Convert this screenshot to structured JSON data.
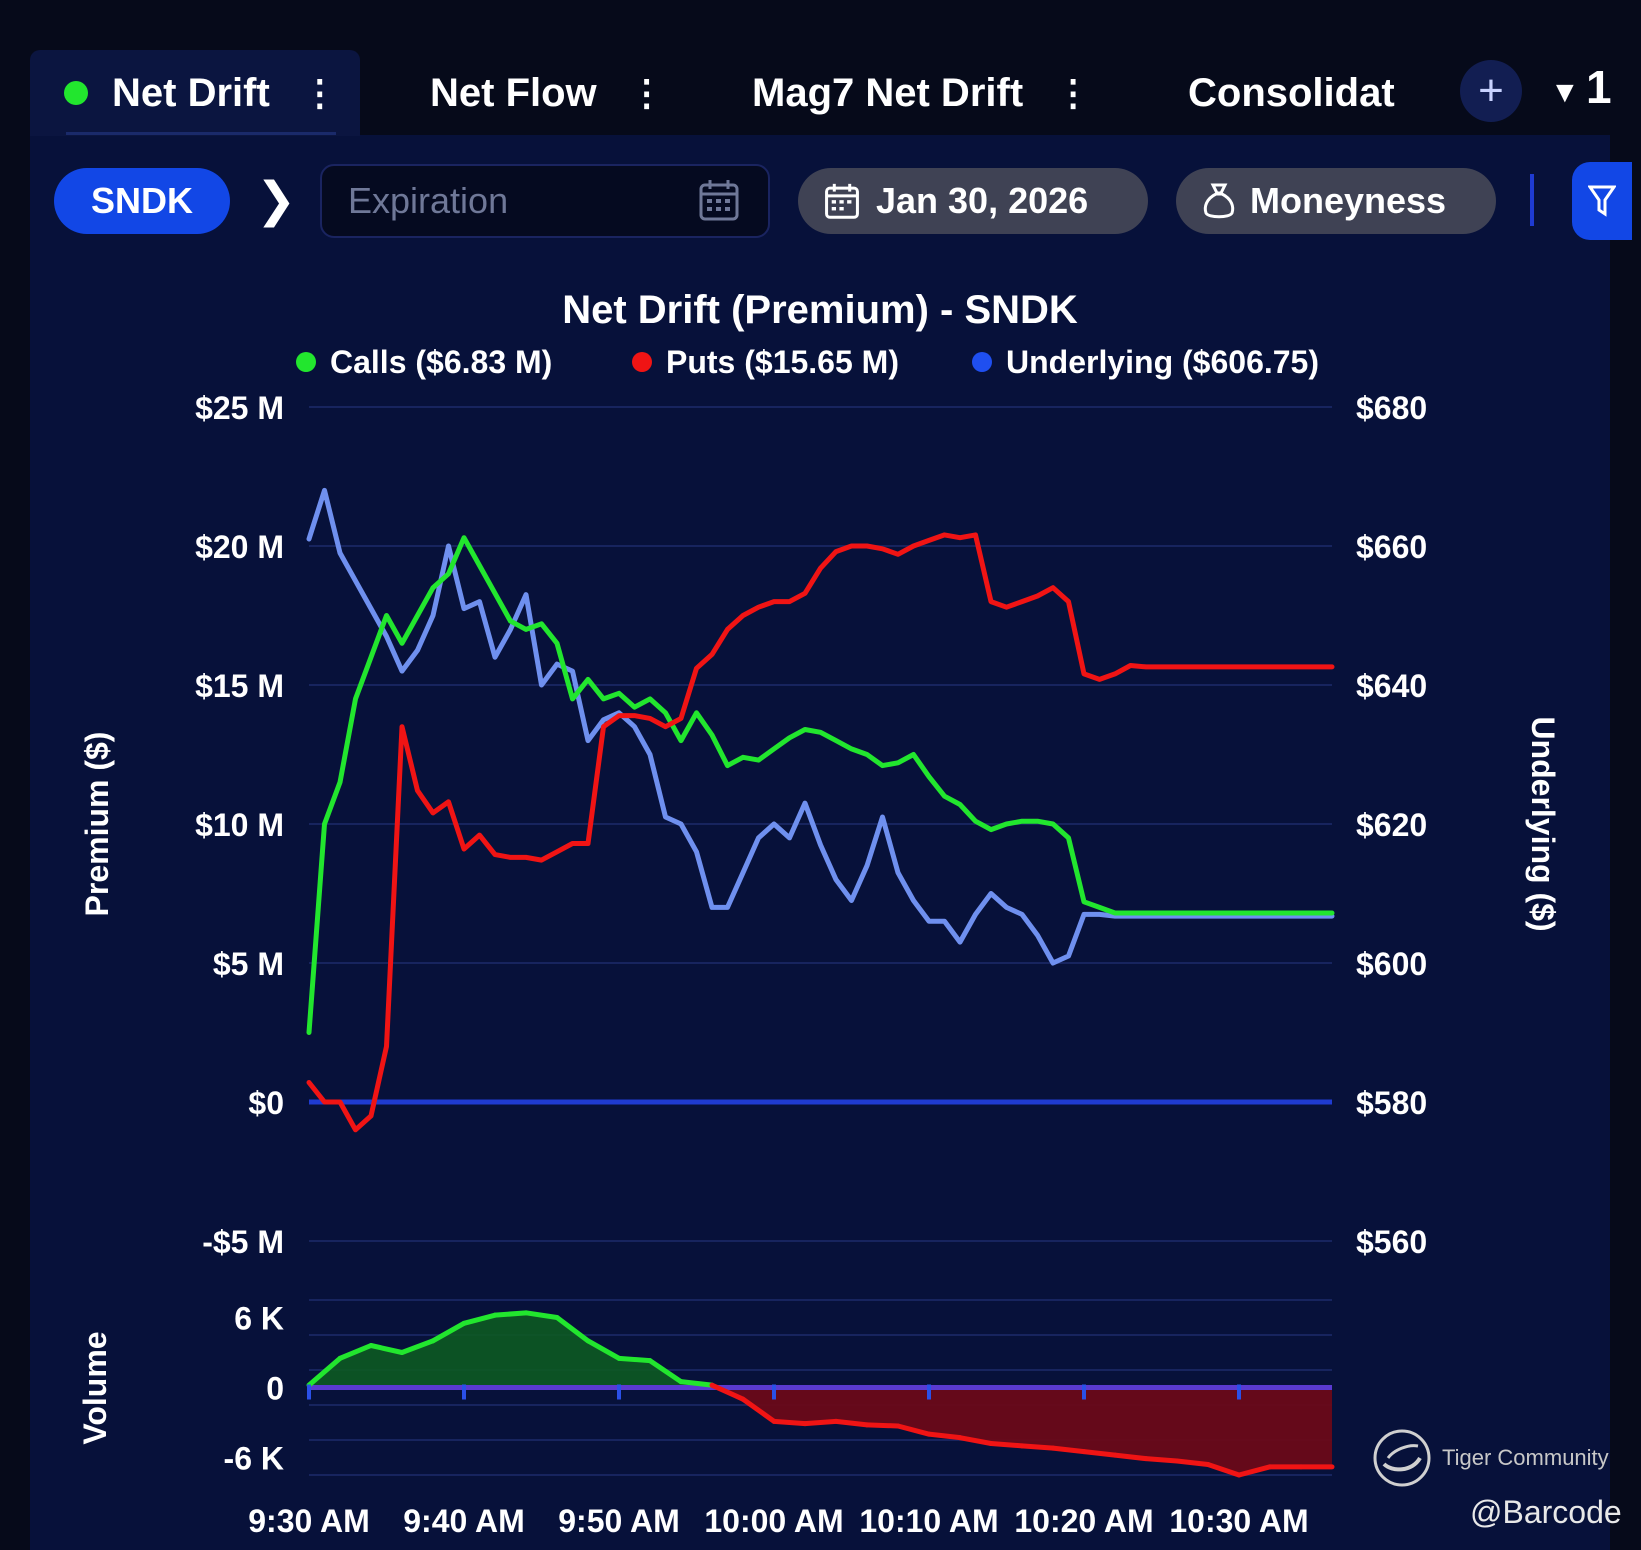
{
  "tabs": [
    {
      "label": "Net Drift",
      "active": true
    },
    {
      "label": "Net Flow",
      "active": false
    },
    {
      "label": "Mag7 Net Drift",
      "active": false
    },
    {
      "label": "Consolidat",
      "active": false
    }
  ],
  "tab_menu_glyph": "⋮",
  "add_tab_glyph": "+",
  "tab_count": "1",
  "toolbar": {
    "ticker": "SNDK",
    "expiration_placeholder": "Expiration",
    "date": "Jan 30, 2026",
    "moneyness": "Moneyness"
  },
  "colors": {
    "calls": "#22e62e",
    "puts": "#f01414",
    "underlying": "#6f90ef",
    "legend_underlying": "#1f4ff0",
    "zero_line": "#1f3bd1"
  },
  "chart_data": [
    {
      "type": "line",
      "title": "Net Drift (Premium) - SNDK",
      "legend": [
        "Calls ($6.83 M)",
        "Puts ($15.65 M)",
        "Underlying ($606.75)"
      ],
      "legend_placement": "top-center",
      "ylabel": "Premium ($)",
      "y2label": "Underlying ($)",
      "ylim": [
        -5,
        25
      ],
      "y2lim": [
        560,
        680
      ],
      "yticks": [
        25,
        20,
        15,
        10,
        5,
        0,
        -5
      ],
      "ytick_labels": [
        "$25 M",
        "$20 M",
        "$15 M",
        "$10 M",
        "$5 M",
        "$0",
        "-$5 M"
      ],
      "y2ticks": [
        680,
        660,
        640,
        620,
        600,
        580,
        560
      ],
      "y2tick_labels": [
        "$680",
        "$660",
        "$640",
        "$620",
        "$600",
        "$580",
        "$560"
      ],
      "x_minutes_from_930": [
        0,
        1,
        2,
        3,
        4,
        5,
        6,
        7,
        8,
        9,
        10,
        11,
        12,
        13,
        14,
        15,
        16,
        17,
        18,
        19,
        20,
        21,
        22,
        23,
        24,
        25,
        26,
        27,
        28,
        29,
        30,
        31,
        32,
        33,
        34,
        35,
        36,
        37,
        38,
        39,
        40,
        41,
        42,
        43,
        44,
        45,
        46,
        47,
        48,
        49,
        50,
        51,
        52,
        53,
        54,
        55,
        56,
        57,
        58,
        59,
        60,
        61,
        62,
        63,
        64,
        65,
        66
      ],
      "series": [
        {
          "name": "Calls ($6.83 M)",
          "axis": "left",
          "values": [
            2.5,
            10.0,
            11.5,
            14.5,
            16.0,
            17.5,
            16.5,
            17.5,
            18.5,
            19.0,
            20.3,
            19.3,
            18.3,
            17.3,
            17.0,
            17.2,
            16.5,
            14.5,
            15.2,
            14.5,
            14.7,
            14.2,
            14.5,
            14.0,
            13.0,
            14.0,
            13.2,
            12.1,
            12.4,
            12.3,
            12.7,
            13.1,
            13.4,
            13.3,
            13.0,
            12.7,
            12.5,
            12.1,
            12.2,
            12.5,
            11.7,
            11.0,
            10.7,
            10.1,
            9.8,
            10.0,
            10.1,
            10.1,
            10.0,
            9.5,
            7.2,
            7.0,
            6.8,
            6.8,
            6.8,
            6.8,
            6.8,
            6.8,
            6.8,
            6.8,
            6.8,
            6.8,
            6.8,
            6.8,
            6.8,
            6.8,
            6.8
          ]
        },
        {
          "name": "Puts ($15.65 M)",
          "axis": "left",
          "values": [
            0.7,
            0.0,
            0.0,
            -1.0,
            -0.5,
            2.0,
            13.5,
            11.2,
            10.4,
            10.8,
            9.1,
            9.6,
            8.9,
            8.8,
            8.8,
            8.7,
            9.0,
            9.3,
            9.3,
            13.5,
            13.9,
            13.9,
            13.8,
            13.5,
            13.8,
            15.6,
            16.1,
            17.0,
            17.5,
            17.8,
            18.0,
            18.0,
            18.3,
            19.2,
            19.8,
            20.0,
            20.0,
            19.9,
            19.7,
            20.0,
            20.2,
            20.4,
            20.3,
            20.4,
            18.0,
            17.8,
            18.0,
            18.2,
            18.5,
            18.0,
            15.4,
            15.2,
            15.4,
            15.7,
            15.65,
            15.65,
            15.65,
            15.65,
            15.65,
            15.65,
            15.65,
            15.65,
            15.65,
            15.65,
            15.65,
            15.65,
            15.65
          ]
        },
        {
          "name": "Underlying ($606.75)",
          "axis": "right",
          "values": [
            661,
            668,
            659,
            655,
            651,
            647,
            642,
            645,
            650,
            660,
            651,
            652,
            644,
            648,
            653,
            640,
            643,
            642,
            632,
            635,
            636,
            634,
            630,
            621,
            620,
            616,
            608,
            608,
            613,
            618,
            620,
            618,
            623,
            617,
            612,
            609,
            614,
            621,
            613,
            609,
            606,
            606,
            603,
            607,
            610,
            608,
            607,
            604,
            600,
            601,
            607,
            607,
            606.75,
            606.75,
            606.75,
            606.75,
            606.75,
            606.75,
            606.75,
            606.75,
            606.75,
            606.75,
            606.75,
            606.75,
            606.75,
            606.75,
            606.75
          ]
        }
      ]
    },
    {
      "type": "area",
      "ylabel": "Volume",
      "ylim": [
        -7.5,
        7.5
      ],
      "yticks": [
        6,
        0,
        -6
      ],
      "ytick_labels": [
        "6 K",
        "0",
        "-6 K"
      ],
      "xtick_labels": [
        "9:30 AM",
        "9:40 AM",
        "9:50 AM",
        "10:00 AM",
        "10:10 AM",
        "10:20 AM",
        "10:30 AM"
      ],
      "xlim": [
        0,
        66
      ],
      "x_minutes_from_930": [
        0,
        2,
        4,
        6,
        8,
        10,
        12,
        14,
        16,
        18,
        20,
        22,
        24,
        26,
        28,
        30,
        32,
        34,
        36,
        38,
        40,
        42,
        44,
        46,
        48,
        50,
        52,
        54,
        56,
        58,
        60,
        62,
        64,
        66
      ],
      "series": [
        {
          "name": "Net Volume",
          "values": [
            0.2,
            2.5,
            3.6,
            3.0,
            4.0,
            5.5,
            6.2,
            6.4,
            6.0,
            4.0,
            2.5,
            2.3,
            0.5,
            0.2,
            -1.0,
            -2.9,
            -3.1,
            -2.9,
            -3.2,
            -3.3,
            -4.0,
            -4.3,
            -4.8,
            -5.0,
            -5.2,
            -5.5,
            -5.8,
            -6.1,
            -6.3,
            -6.6,
            -7.5,
            -6.8,
            -6.8,
            -6.8
          ]
        }
      ]
    }
  ],
  "watermark": {
    "brand": "Tiger Community",
    "handle": "@Barcode"
  }
}
